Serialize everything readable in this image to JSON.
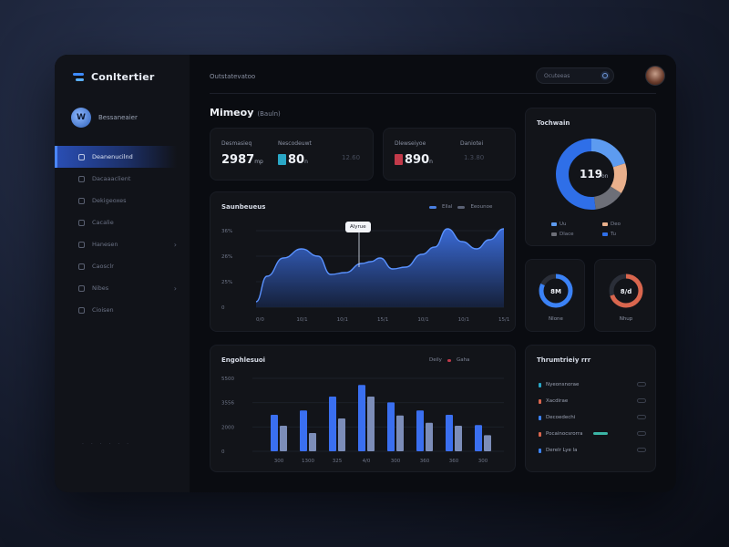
{
  "app": {
    "brand": "Conltertier",
    "user_name": "Bessaneaier",
    "user_initial": "W"
  },
  "nav": {
    "items": [
      {
        "label": "Deanenucilnd",
        "active": true,
        "chevron": false
      },
      {
        "label": "Dacaaaclient",
        "active": false,
        "chevron": false
      },
      {
        "label": "Dekigeoxes",
        "active": false,
        "chevron": false
      },
      {
        "label": "Cacalie",
        "active": false,
        "chevron": false
      },
      {
        "label": "Hanesen",
        "active": false,
        "chevron": true
      },
      {
        "label": "Caosclr",
        "active": false,
        "chevron": false
      },
      {
        "label": "Nibes",
        "active": false,
        "chevron": true
      },
      {
        "label": "Cioisen",
        "active": false,
        "chevron": false
      }
    ],
    "footer": "· · ·    · · ·"
  },
  "topbar": {
    "title": "Outstatevatoo",
    "search_placeholder": "Ocuteeas"
  },
  "section": {
    "title": "Mimeoy",
    "subtitle": "(Bauln)"
  },
  "stats": [
    {
      "label_a": "Desmasieq",
      "value_a": "2987",
      "unit_a": "mp",
      "label_b": "Nescodeuwt",
      "value_b": "80",
      "unit_b": "n",
      "faint": "12.60",
      "chip_b": "#2aa7c6"
    },
    {
      "label_a": "Dlewseiyoe",
      "value_a": "890",
      "unit_a": "n",
      "label_b": "Daniotei",
      "value_b": "",
      "unit_b": "",
      "faint": "1.3.80",
      "chip_a": "#c23a4a"
    }
  ],
  "area_chart": {
    "title": "Saunbeueus",
    "legend": [
      "Ellal",
      "Eeounoe"
    ],
    "tooltip": "Alyrue",
    "y_ticks": [
      "36%",
      "26%",
      "25%",
      "0"
    ],
    "x_ticks": [
      "0/0",
      "10/1",
      "10/1",
      "15/1",
      "10/1",
      "10/1",
      "15/1"
    ]
  },
  "donut_main": {
    "title": "Tochwain",
    "center": "119",
    "center_unit": "on",
    "segments": [
      {
        "label": "Uu",
        "value": 20,
        "color": "#5d9bf0"
      },
      {
        "label": "Deo",
        "value": 14,
        "color": "#e9b08c"
      },
      {
        "label": "Dlace",
        "value": 14,
        "color": "#6d6f78"
      },
      {
        "label": "Tu",
        "value": 52,
        "color": "#2f6fe8"
      }
    ]
  },
  "small_donuts": [
    {
      "center": "8M",
      "label": "Nlone",
      "color": "#3b82f6",
      "value": 82
    },
    {
      "center": "8/d",
      "label": "Nhup",
      "color": "#d9664e",
      "value": 70
    }
  ],
  "bar_chart": {
    "title": "Engohlesuoi",
    "legend": [
      "Deily",
      "Gaha"
    ],
    "y_ticks": [
      "5500",
      "3556",
      "2000",
      "0"
    ],
    "x_ticks": [
      "300",
      "1300",
      "325",
      "4/0",
      "300",
      "360",
      "360",
      "300"
    ],
    "series_a": [
      50,
      56,
      75,
      91,
      67,
      56,
      50,
      36
    ],
    "series_b": [
      35,
      25,
      45,
      75,
      49,
      39,
      35,
      22
    ]
  },
  "list": {
    "title": "Thrumtrieiy rrr",
    "rows": [
      {
        "label": "Nyeonsnorae",
        "mark": "#2aa7c6",
        "badge": false
      },
      {
        "label": "Xacdirae",
        "mark": "#d9664e",
        "badge": false
      },
      {
        "label": "Decoedechi",
        "mark": "#3b82f6",
        "badge": false
      },
      {
        "label": "Pocainocsrorra",
        "mark": "#d9664e",
        "badge": true
      },
      {
        "label": "Derelr Lye la",
        "mark": "#3b82f6",
        "badge": false
      }
    ]
  },
  "colors": {
    "accent": "#3b82f6",
    "area_fill": "#2b5cc6",
    "bar_a": "#3a6ff0",
    "bar_b": "#7c8db8"
  }
}
